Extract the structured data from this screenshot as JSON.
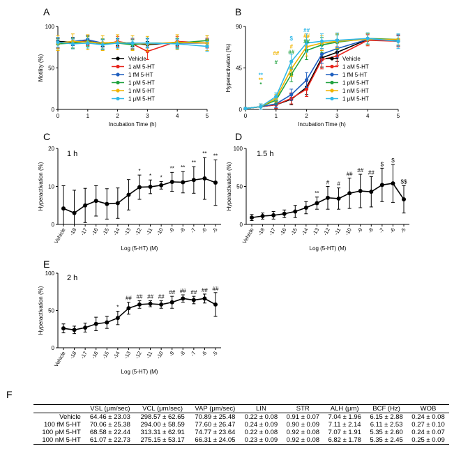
{
  "chart_data": [
    {
      "panel": "A",
      "type": "line",
      "xlabel": "Incubation Time (h)",
      "ylabel": "Motility (%)",
      "xlim": [
        0,
        5
      ],
      "ylim": [
        0,
        100
      ],
      "yticks": [
        0,
        50,
        100
      ],
      "x": [
        0,
        0.5,
        1,
        1.5,
        2,
        2.5,
        3,
        4,
        5
      ],
      "series": [
        {
          "name": "Vehicle",
          "color": "#000000",
          "values": [
            82,
            81,
            82,
            80,
            81,
            80,
            78,
            81,
            80
          ],
          "err": [
            4,
            4,
            4,
            4,
            4,
            4,
            4,
            4,
            4
          ]
        },
        {
          "name": "1 aM 5-HT",
          "color": "#e8241c",
          "values": [
            80,
            80,
            83,
            78,
            82,
            79,
            70,
            82,
            80
          ],
          "err": [
            6,
            6,
            6,
            6,
            6,
            6,
            10,
            6,
            6
          ]
        },
        {
          "name": "1 fM 5-HT",
          "color": "#1f5fbf",
          "values": [
            80,
            82,
            84,
            80,
            80,
            79,
            80,
            80,
            80
          ],
          "err": [
            5,
            5,
            5,
            5,
            5,
            5,
            5,
            5,
            5
          ]
        },
        {
          "name": "1 pM 5-HT",
          "color": "#21a23f",
          "values": [
            79,
            80,
            82,
            79,
            80,
            78,
            80,
            80,
            83
          ],
          "err": [
            6,
            6,
            6,
            6,
            6,
            6,
            6,
            6,
            6
          ]
        },
        {
          "name": "1 nM 5-HT",
          "color": "#f0b400",
          "values": [
            80,
            82,
            81,
            80,
            81,
            80,
            79,
            81,
            80
          ],
          "err": [
            9,
            9,
            9,
            9,
            9,
            9,
            9,
            9,
            9
          ]
        },
        {
          "name": "1 μM 5-HT",
          "color": "#30b8e8",
          "values": [
            81,
            79,
            80,
            78,
            80,
            80,
            80,
            79,
            76
          ],
          "err": [
            6,
            6,
            6,
            6,
            6,
            6,
            6,
            6,
            6
          ]
        }
      ]
    },
    {
      "panel": "B",
      "type": "line",
      "xlabel": "Incubation Time (h)",
      "ylabel": "Hyperactivation (%)",
      "xlim": [
        0,
        5
      ],
      "ylim": [
        0,
        90
      ],
      "yticks": [
        0,
        45,
        90
      ],
      "x": [
        0,
        0.5,
        1,
        1.5,
        2,
        2.5,
        3,
        4,
        5
      ],
      "series": [
        {
          "name": "Vehicle",
          "color": "#000000",
          "values": [
            1,
            3,
            5,
            11,
            24,
            56,
            62,
            76,
            74
          ],
          "err": [
            1,
            3,
            4,
            6,
            8,
            10,
            10,
            6,
            6
          ]
        },
        {
          "name": "1 aM 5-HT",
          "color": "#e8241c",
          "values": [
            1,
            3,
            5,
            12,
            22,
            54,
            58,
            75,
            74
          ],
          "err": [
            1,
            3,
            4,
            6,
            8,
            10,
            10,
            6,
            6
          ]
        },
        {
          "name": "1 fM 5-HT",
          "color": "#1f5fbf",
          "values": [
            1,
            3,
            6,
            16,
            32,
            60,
            66,
            76,
            75
          ],
          "err": [
            1,
            3,
            4,
            6,
            8,
            10,
            10,
            6,
            6
          ]
        },
        {
          "name": "1 pM 5-HT",
          "color": "#21a23f",
          "values": [
            1,
            3,
            10,
            38,
            64,
            70,
            73,
            77,
            76
          ],
          "err": [
            1,
            3,
            4,
            8,
            10,
            8,
            8,
            6,
            6
          ]
        },
        {
          "name": "1 nM 5-HT",
          "color": "#f0b400",
          "values": [
            1,
            3,
            12,
            44,
            68,
            72,
            74,
            76,
            76
          ],
          "err": [
            1,
            3,
            4,
            8,
            10,
            8,
            8,
            6,
            6
          ]
        },
        {
          "name": "1 μM 5-HT",
          "color": "#30b8e8",
          "values": [
            1,
            3,
            14,
            52,
            72,
            74,
            75,
            77,
            74
          ],
          "err": [
            1,
            3,
            4,
            8,
            10,
            8,
            8,
            6,
            8
          ]
        }
      ],
      "annotations": [
        {
          "x": 0.5,
          "y": 35,
          "text": "**",
          "color": "#30b8e8"
        },
        {
          "x": 0.5,
          "y": 30,
          "text": "**",
          "color": "#f0b400"
        },
        {
          "x": 0.5,
          "y": 25,
          "text": "*",
          "color": "#21a23f"
        },
        {
          "x": 1,
          "y": 59,
          "text": "##",
          "color": "#f0b400"
        },
        {
          "x": 1,
          "y": 49,
          "text": "#",
          "color": "#21a23f"
        },
        {
          "x": 1.5,
          "y": 75,
          "text": "$",
          "color": "#30b8e8"
        },
        {
          "x": 1.5,
          "y": 66,
          "text": "#",
          "color": "#f0b400"
        },
        {
          "x": 1.5,
          "y": 60,
          "text": "##",
          "color": "#21a23f"
        },
        {
          "x": 2,
          "y": 84,
          "text": "##",
          "color": "#30b8e8"
        },
        {
          "x": 2,
          "y": 78,
          "text": "##",
          "color": "#f0b400"
        },
        {
          "x": 2,
          "y": 72,
          "text": "##",
          "color": "#21a23f"
        }
      ]
    },
    {
      "panel": "C",
      "type": "line",
      "title": "1 h",
      "xlabel": "Log (5-HT) (M)",
      "ylabel": "Hyperactivation (%)",
      "ylim": [
        0,
        20
      ],
      "yticks": [
        0,
        10,
        20
      ],
      "categories": [
        "Vehicle",
        "-18",
        "-17",
        "-16",
        "-15",
        "-14",
        "-13",
        "-12",
        "-11",
        "-10",
        "-9",
        "-8",
        "-7",
        "-6",
        "-5"
      ],
      "values": [
        4.2,
        3.0,
        5.0,
        6.2,
        5.4,
        5.6,
        7.8,
        9.8,
        9.9,
        10.3,
        11.2,
        11.1,
        11.7,
        12.1,
        11.0
      ],
      "err": [
        6,
        6,
        4.5,
        4,
        4,
        4,
        4,
        3.2,
        1.8,
        1.0,
        2.5,
        2.8,
        3.5,
        5.5,
        6.0
      ],
      "labels": [
        "",
        "",
        "",
        "",
        "",
        "",
        "",
        "*",
        "*",
        "*",
        "**",
        "**",
        "**",
        "**",
        "**"
      ]
    },
    {
      "panel": "D",
      "type": "line",
      "title": "1.5 h",
      "xlabel": "Log (5-HT) (M)",
      "ylabel": "Hyperactivation (%)",
      "ylim": [
        0,
        100
      ],
      "yticks": [
        0,
        50,
        100
      ],
      "categories": [
        "Vehicle",
        "-18",
        "-17",
        "-16",
        "-15",
        "-14",
        "-13",
        "-12",
        "-11",
        "-10",
        "-9",
        "-8",
        "-7",
        "-6",
        "-5"
      ],
      "values": [
        9,
        11,
        12,
        14,
        17,
        22,
        28,
        35,
        34,
        41,
        44,
        43,
        52,
        54,
        33
      ],
      "err": [
        4,
        4,
        5,
        5,
        8,
        8,
        8,
        15,
        14,
        20,
        22,
        20,
        22,
        25,
        18
      ],
      "labels": [
        "",
        "",
        "",
        "",
        "",
        "",
        "**",
        "#",
        "#",
        "##",
        "##",
        "##",
        "$",
        "$",
        "$$"
      ]
    },
    {
      "panel": "E",
      "type": "line",
      "title": "2 h",
      "xlabel": "Log (5-HT) (M)",
      "ylabel": "Hyperactivation (%)",
      "ylim": [
        0,
        100
      ],
      "yticks": [
        0,
        50,
        100
      ],
      "categories": [
        "Vehicle",
        "-18",
        "-17",
        "-16",
        "-15",
        "-14",
        "-13",
        "-12",
        "-11",
        "-10",
        "-9",
        "-8",
        "-7",
        "-6",
        "-5"
      ],
      "values": [
        26,
        24,
        27,
        32,
        34,
        40,
        53,
        58,
        59,
        58,
        61,
        66,
        64,
        66,
        58
      ],
      "err": [
        6,
        5,
        6,
        9,
        8,
        9,
        8,
        5,
        4,
        5,
        8,
        5,
        5,
        6,
        16
      ],
      "labels": [
        "",
        "",
        "",
        "",
        "",
        "*",
        "##",
        "##",
        "##",
        "##",
        "##",
        "##",
        "##",
        "##",
        "##"
      ]
    }
  ],
  "panel_labels": [
    "A",
    "B",
    "C",
    "D",
    "E",
    "F"
  ],
  "table": {
    "panel": "F",
    "headers": [
      "",
      "VSL (μm/sec)",
      "VCL (μm/sec)",
      "VAP (μm/sec)",
      "LIN",
      "STR",
      "ALH (μm)",
      "BCF (Hz)",
      "WOB"
    ],
    "rows": [
      [
        "Vehicle",
        "64.46 ± 23.03",
        "298.57 ± 62.65",
        "70.89 ± 25.48",
        "0.22 ± 0.08",
        "0.91 ± 0.07",
        "7.04 ± 1.96",
        "6.15 ± 2.88",
        "0.24 ± 0.08"
      ],
      [
        "100 fM 5-HT",
        "70.06 ± 25.38",
        "294.00 ± 58.59",
        "77.60 ± 26.47",
        "0.24 ± 0.09",
        "0.90 ± 0.09",
        "7.11 ± 2.14",
        "6.11 ± 2.53",
        "0.27 ± 0.10"
      ],
      [
        "100 pM 5-HT",
        "68.58 ± 22.44",
        "313.31 ± 62.91",
        "74.77 ± 23.64",
        "0.22 ± 0.08",
        "0.92 ± 0.08",
        "7.07 ± 1.91",
        "5.35 ± 2.60",
        "0.24 ± 0.07"
      ],
      [
        "100 nM 5-HT",
        "61.07 ± 22.73",
        "275.15 ± 53.17",
        "66.31 ± 24.05",
        "0.23 ± 0.09",
        "0.92 ± 0.08",
        "6.82 ± 1.78",
        "5.35 ± 2.45",
        "0.25 ± 0.09"
      ]
    ]
  }
}
